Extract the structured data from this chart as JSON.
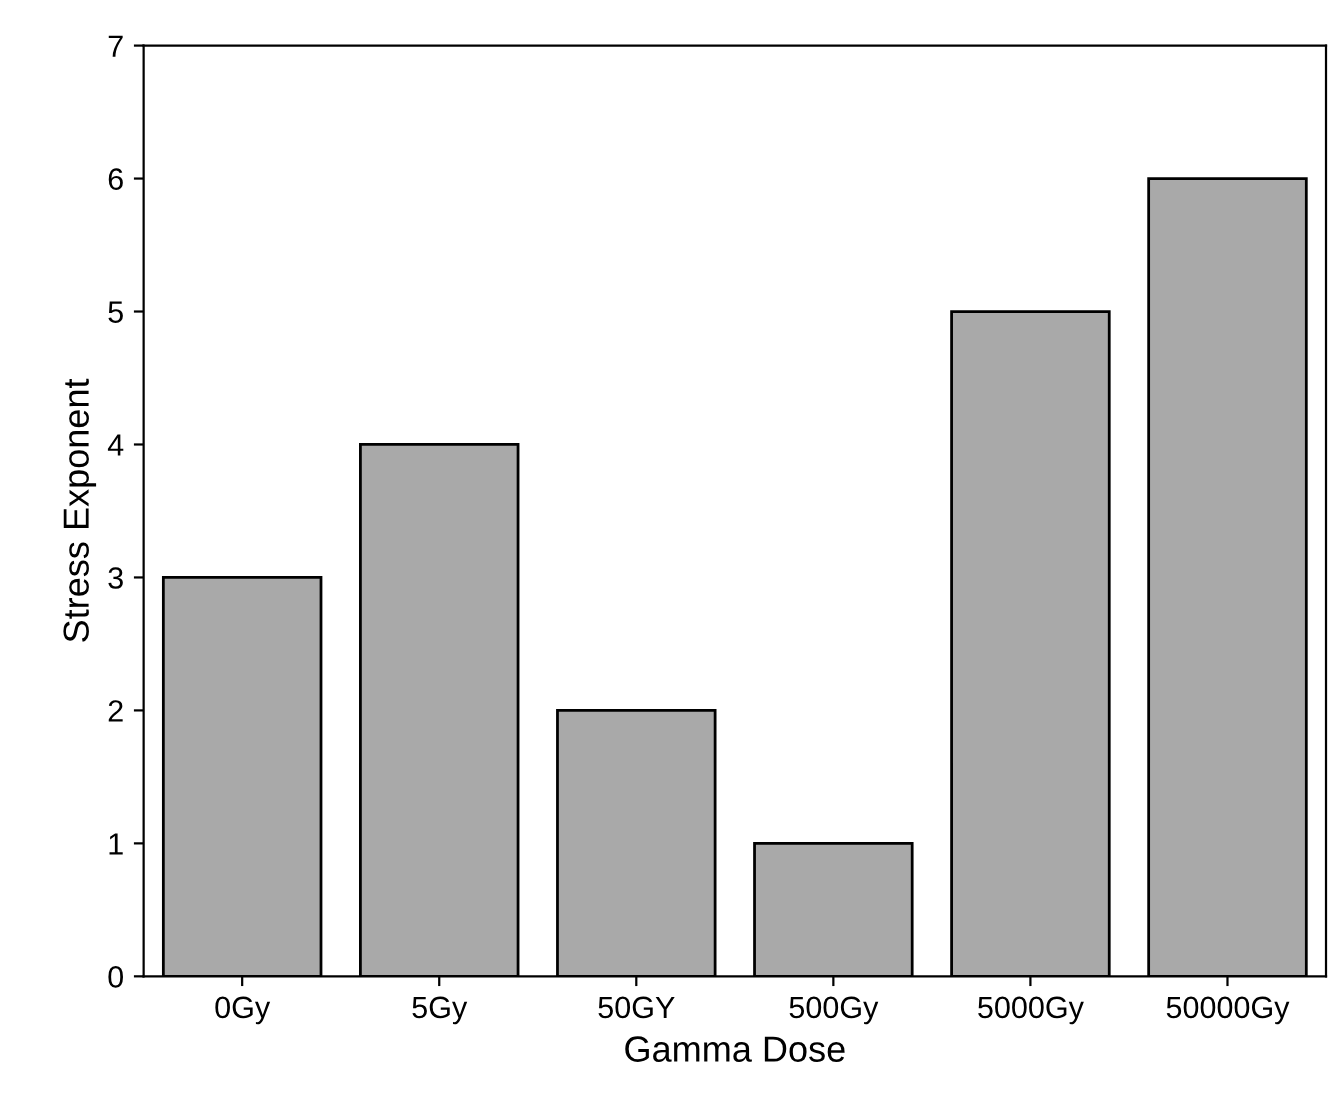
{
  "chart_data": {
    "type": "bar",
    "xlabel": "Gamma Dose",
    "ylabel": "Stress Exponent",
    "categories": [
      "0Gy",
      "5Gy",
      "50GY",
      "500Gy",
      "5000Gy",
      "50000Gy"
    ],
    "values": [
      3,
      4,
      2,
      1,
      5,
      6
    ],
    "color": "#a9a9a9",
    "ylim": [
      0,
      7
    ],
    "yticks": [
      0,
      1,
      2,
      3,
      4,
      5,
      6,
      7
    ],
    "grid": false,
    "legend": false
  }
}
